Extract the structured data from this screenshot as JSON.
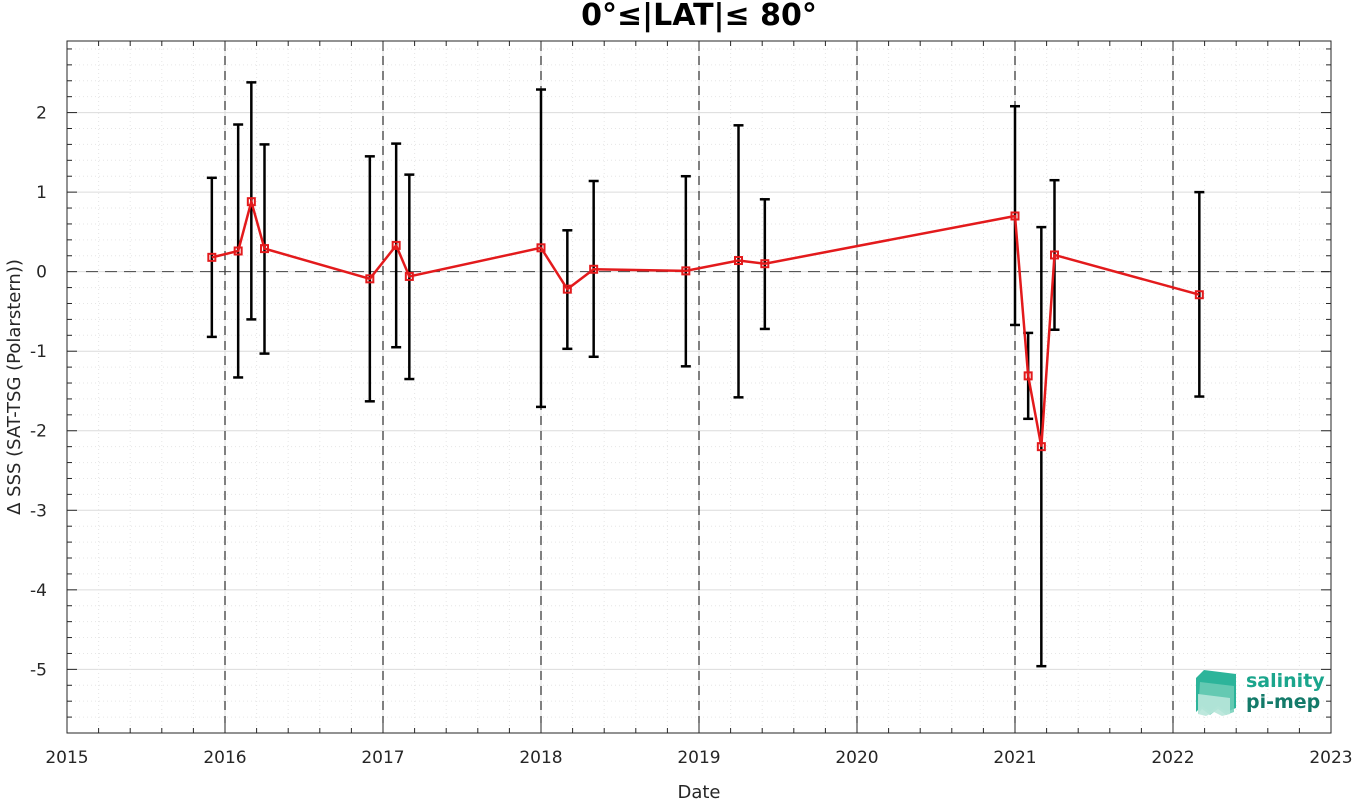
{
  "chart_data": {
    "type": "line",
    "title": "0°≤|LAT|≤ 80°",
    "xlabel": "Date",
    "ylabel": "Δ SSS (SAT-TSG (Polarstern))",
    "xlim": [
      2015,
      2023
    ],
    "ylim": [
      -5.8,
      2.9
    ],
    "x_ticks": [
      "2015",
      "2016",
      "2017",
      "2018",
      "2019",
      "2020",
      "2021",
      "2022",
      "2023"
    ],
    "y_ticks": [
      "-5",
      "-4",
      "-3",
      "-2",
      "-1",
      "0",
      "1",
      "2"
    ],
    "grid": true,
    "reference_line": 0,
    "series": [
      {
        "color": "#e31a1c",
        "marker": "square",
        "points": [
          {
            "x": "2015-12",
            "y": 0.18,
            "err_low": -0.82,
            "err_high": 1.18
          },
          {
            "x": "2016-02",
            "y": 0.26,
            "err_low": -1.33,
            "err_high": 1.85
          },
          {
            "x": "2016-03",
            "y": 0.88,
            "err_low": -0.6,
            "err_high": 2.38
          },
          {
            "x": "2016-04",
            "y": 0.29,
            "err_low": -1.03,
            "err_high": 1.6
          },
          {
            "x": "2016-12",
            "y": -0.09,
            "err_low": -1.63,
            "err_high": 1.45
          },
          {
            "x": "2017-02",
            "y": 0.33,
            "err_low": -0.95,
            "err_high": 1.61
          },
          {
            "x": "2017-03",
            "y": -0.06,
            "err_low": -1.35,
            "err_high": 1.22
          },
          {
            "x": "2018-01",
            "y": 0.3,
            "err_low": -1.7,
            "err_high": 2.29
          },
          {
            "x": "2018-03",
            "y": -0.22,
            "err_low": -0.97,
            "err_high": 0.52
          },
          {
            "x": "2018-05",
            "y": 0.03,
            "err_low": -1.07,
            "err_high": 1.14
          },
          {
            "x": "2018-12",
            "y": 0.01,
            "err_low": -1.19,
            "err_high": 1.2
          },
          {
            "x": "2019-04",
            "y": 0.14,
            "err_low": -1.58,
            "err_high": 1.84
          },
          {
            "x": "2019-06",
            "y": 0.1,
            "err_low": -0.72,
            "err_high": 0.91
          },
          {
            "x": "2021-01",
            "y": 0.7,
            "err_low": -0.67,
            "err_high": 2.08
          },
          {
            "x": "2021-02",
            "y": -1.31,
            "err_low": -1.85,
            "err_high": -0.77
          },
          {
            "x": "2021-03",
            "y": -2.2,
            "err_low": -4.96,
            "err_high": 0.56
          },
          {
            "x": "2021-04",
            "y": 0.21,
            "err_low": -0.73,
            "err_high": 1.15
          },
          {
            "x": "2022-03",
            "y": -0.29,
            "err_low": -1.57,
            "err_high": 1.0
          }
        ]
      }
    ]
  },
  "logo": {
    "line1": "salinity",
    "line2": "pi-mep",
    "color": "#1aa58c"
  }
}
